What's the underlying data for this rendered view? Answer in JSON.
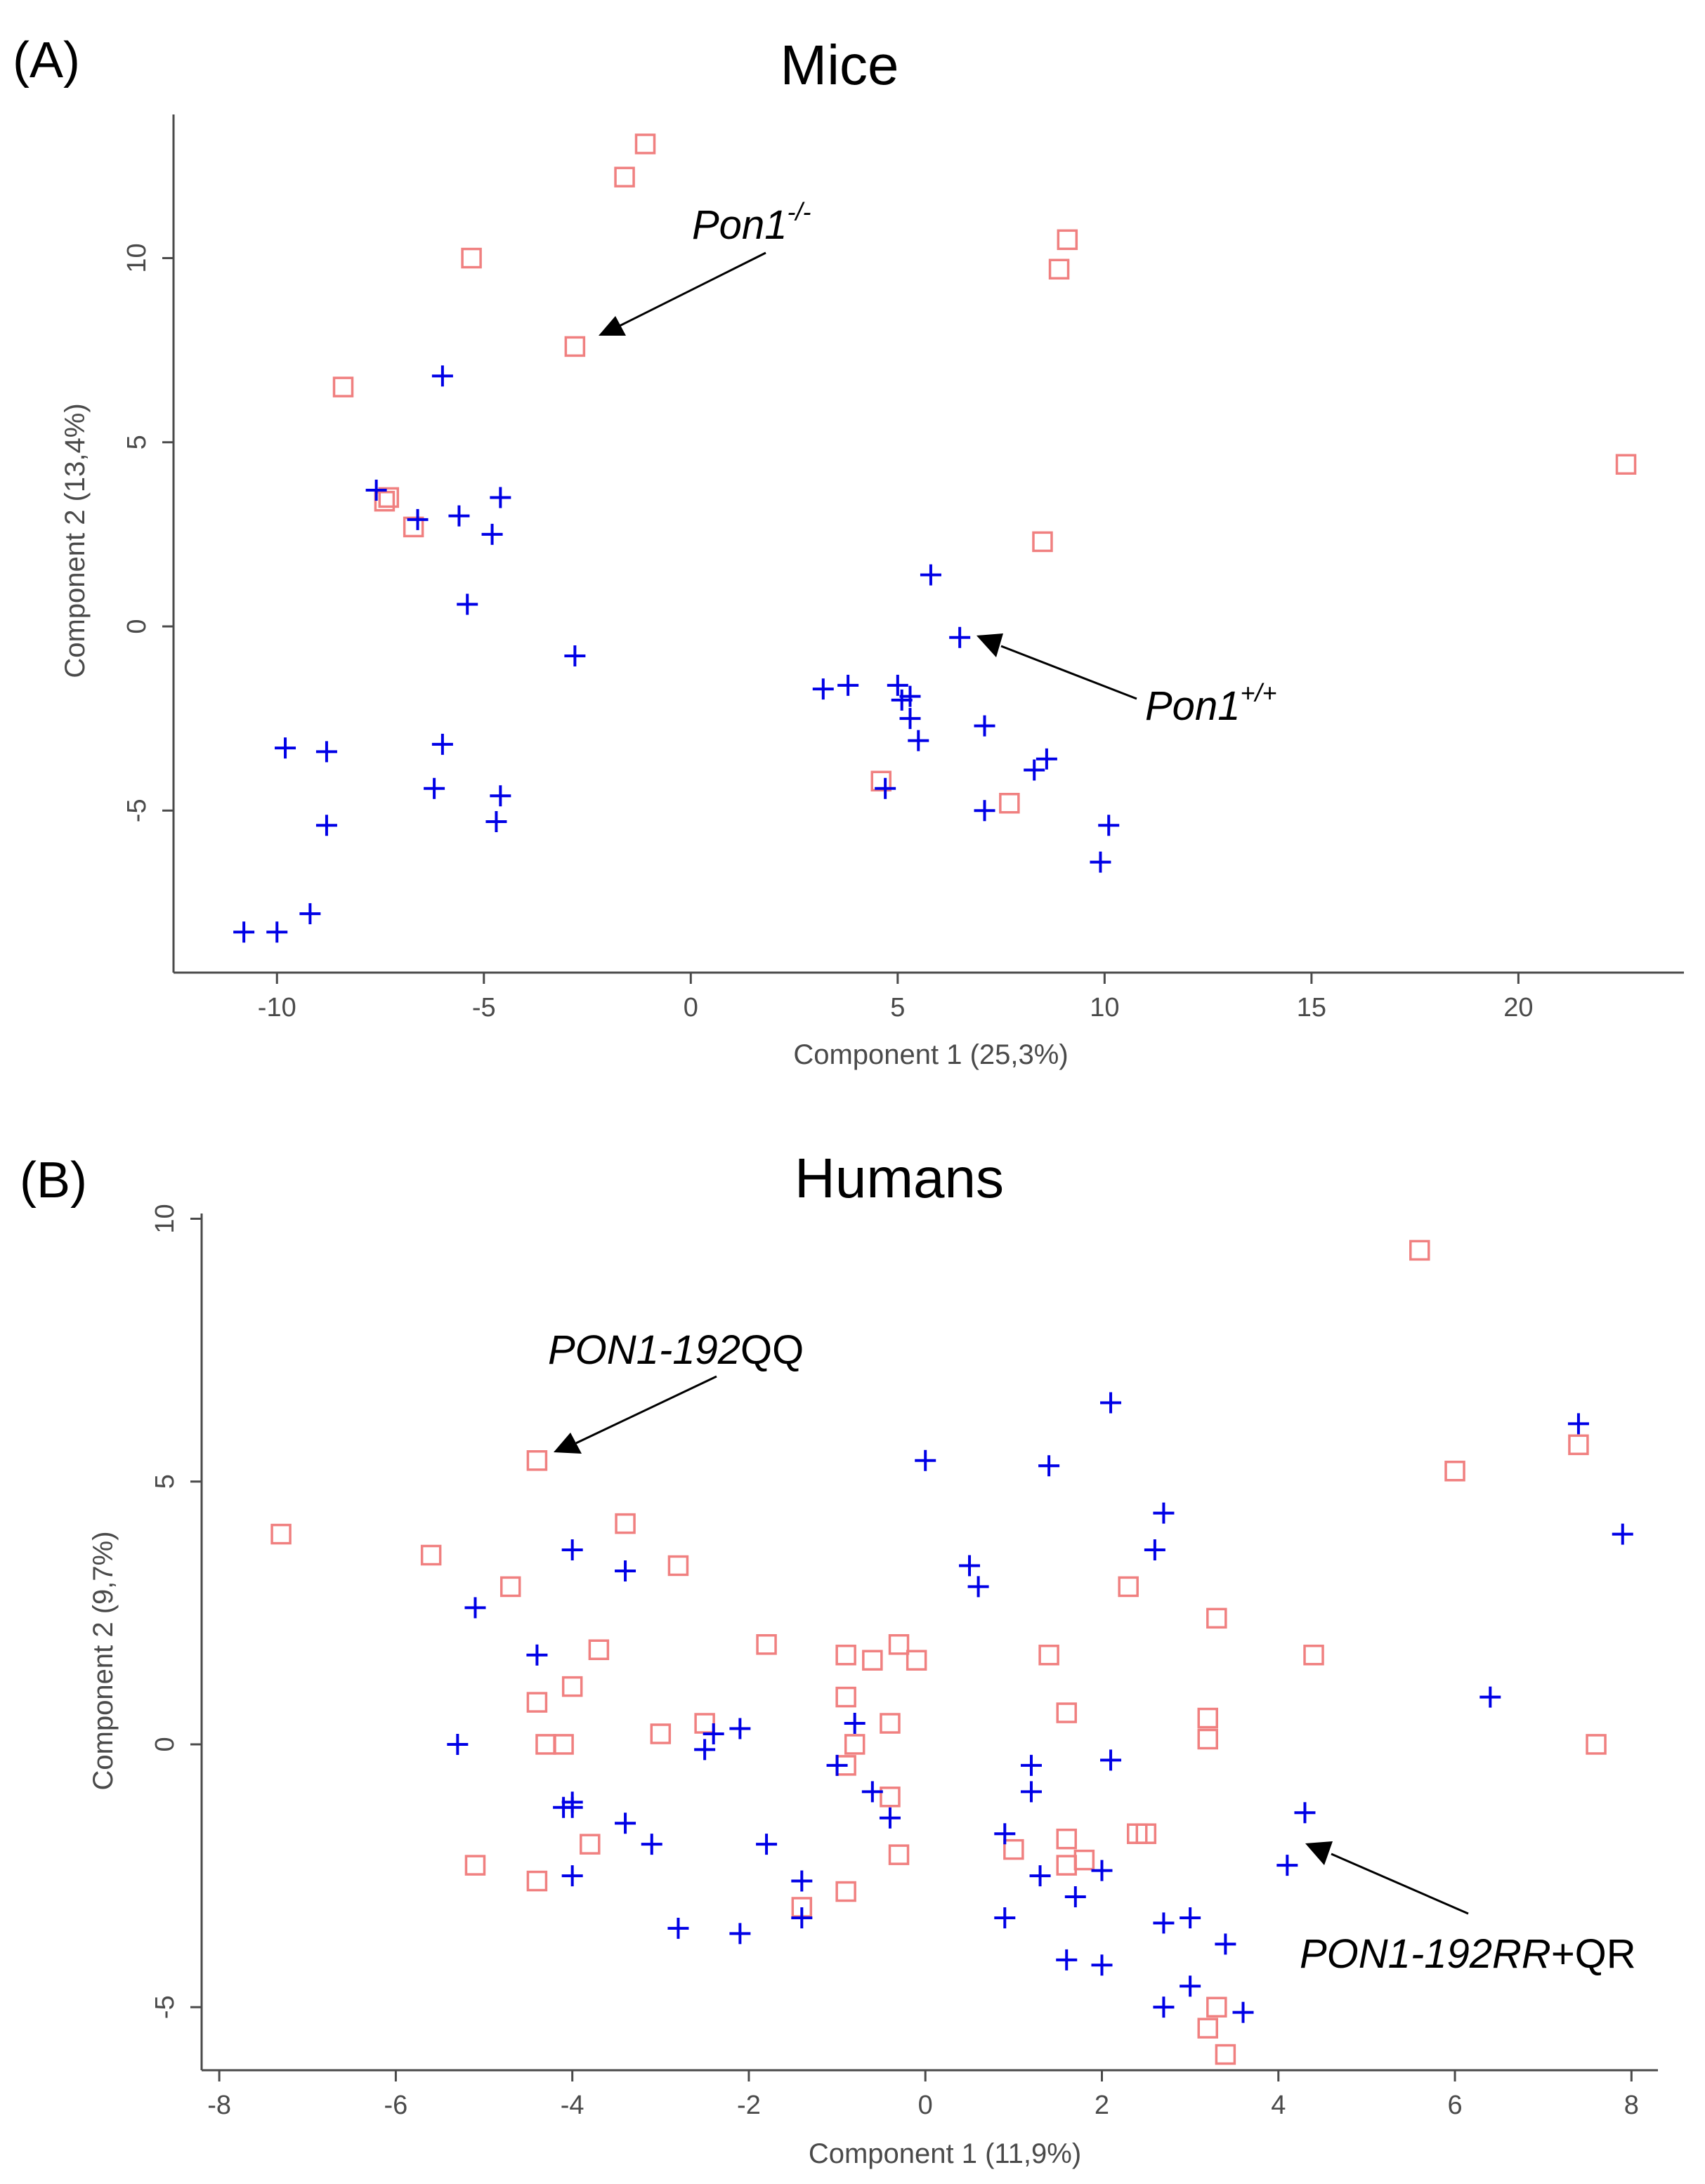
{
  "chart_data": [
    {
      "panel": "(A)",
      "type": "scatter",
      "title": "Mice",
      "xlabel": "Component 1 (25,3%)",
      "ylabel": "Component 2 (13,4%)",
      "xlim": [
        -12.5,
        24
      ],
      "ylim": [
        -9.4,
        13.9
      ],
      "xticks": [
        -10,
        -5,
        0,
        5,
        10,
        15,
        20
      ],
      "yticks": [
        -5,
        0,
        5,
        10
      ],
      "xtick_labels": [
        "-10",
        "-5",
        "0",
        "5",
        "10",
        "15",
        "20"
      ],
      "ytick_labels": [
        "-5",
        "0",
        "5",
        "10"
      ],
      "grid": false,
      "series": [
        {
          "name": "Pon1-/-",
          "marker": "square",
          "color": "#f08080",
          "points": [
            [
              -1.1,
              13.1
            ],
            [
              -1.6,
              12.2
            ],
            [
              -5.3,
              10.0
            ],
            [
              -2.8,
              7.6
            ],
            [
              -8.4,
              6.5
            ],
            [
              -7.4,
              3.4
            ],
            [
              -7.3,
              3.5
            ],
            [
              -6.7,
              2.7
            ],
            [
              8.9,
              9.7
            ],
            [
              9.1,
              10.5
            ],
            [
              22.6,
              4.4
            ],
            [
              8.5,
              2.3
            ],
            [
              4.6,
              -4.2
            ],
            [
              7.7,
              -4.8
            ]
          ]
        },
        {
          "name": "Pon1+/+",
          "marker": "plus",
          "color": "#0000e6",
          "points": [
            [
              -6.0,
              6.8
            ],
            [
              -7.6,
              3.7
            ],
            [
              -6.6,
              2.9
            ],
            [
              -5.6,
              3.0
            ],
            [
              -4.8,
              2.5
            ],
            [
              -4.6,
              3.5
            ],
            [
              -5.4,
              0.6
            ],
            [
              -2.8,
              -0.8
            ],
            [
              -9.8,
              -3.3
            ],
            [
              -8.8,
              -3.4
            ],
            [
              -8.8,
              -5.4
            ],
            [
              -6.0,
              -3.2
            ],
            [
              -6.2,
              -4.4
            ],
            [
              -4.6,
              -4.6
            ],
            [
              -4.7,
              -5.3
            ],
            [
              -9.2,
              -7.8
            ],
            [
              -10.0,
              -8.3
            ],
            [
              -10.8,
              -8.3
            ],
            [
              5.8,
              1.4
            ],
            [
              6.5,
              -0.3
            ],
            [
              3.2,
              -1.7
            ],
            [
              3.8,
              -1.6
            ],
            [
              5.0,
              -1.6
            ],
            [
              5.1,
              -2.0
            ],
            [
              5.3,
              -1.9
            ],
            [
              5.3,
              -2.5
            ],
            [
              5.5,
              -3.1
            ],
            [
              4.7,
              -4.4
            ],
            [
              7.1,
              -2.7
            ],
            [
              8.6,
              -3.6
            ],
            [
              8.3,
              -3.9
            ],
            [
              7.1,
              -5.0
            ],
            [
              10.1,
              -5.4
            ],
            [
              9.9,
              -6.4
            ]
          ]
        }
      ],
      "annotations": [
        {
          "gene": "Pon1",
          "superscript": "-/-"
        },
        {
          "gene": "Pon1",
          "superscript": "+/+"
        }
      ]
    },
    {
      "panel": "(B)",
      "type": "scatter",
      "title": "Humans",
      "xlabel": "Component 1 (11,9%)",
      "ylabel": "Component 2 (9,7%)",
      "xlim": [
        -8.2,
        8.3
      ],
      "ylim": [
        -6.2,
        10.1
      ],
      "xticks": [
        -8,
        -6,
        -4,
        -2,
        0,
        2,
        4,
        6,
        8
      ],
      "yticks": [
        -5,
        0,
        5,
        10
      ],
      "xtick_labels": [
        "-8",
        "-6",
        "-4",
        "-2",
        "0",
        "2",
        "4",
        "6",
        "8"
      ],
      "ytick_labels": [
        "-5",
        "0",
        "5",
        "10"
      ],
      "grid": false,
      "series": [
        {
          "name": "PON1-192QQ",
          "marker": "square",
          "color": "#f08080",
          "points": [
            [
              5.6,
              9.4
            ],
            [
              -7.3,
              4.0
            ],
            [
              -4.4,
              5.4
            ],
            [
              -5.6,
              3.6
            ],
            [
              -4.7,
              3.0
            ],
            [
              -3.4,
              4.2
            ],
            [
              -2.8,
              3.4
            ],
            [
              -3.7,
              1.8
            ],
            [
              -4.0,
              1.1
            ],
            [
              -4.4,
              0.8
            ],
            [
              -4.3,
              0.0
            ],
            [
              -4.1,
              0.0
            ],
            [
              -3.0,
              0.2
            ],
            [
              -2.5,
              0.4
            ],
            [
              -1.8,
              1.9
            ],
            [
              -0.9,
              1.7
            ],
            [
              -0.9,
              0.9
            ],
            [
              -0.6,
              1.6
            ],
            [
              -0.3,
              1.9
            ],
            [
              -0.1,
              1.6
            ],
            [
              -0.4,
              0.4
            ],
            [
              -0.8,
              0.0
            ],
            [
              -0.9,
              -0.4
            ],
            [
              -0.4,
              -1.0
            ],
            [
              -0.3,
              -2.1
            ],
            [
              -0.9,
              -2.8
            ],
            [
              -1.4,
              -3.1
            ],
            [
              -3.8,
              -1.9
            ],
            [
              -4.4,
              -2.6
            ],
            [
              -5.1,
              -2.3
            ],
            [
              1.4,
              1.7
            ],
            [
              1.6,
              0.6
            ],
            [
              1.0,
              -2.0
            ],
            [
              1.6,
              -1.8
            ],
            [
              1.6,
              -2.3
            ],
            [
              1.8,
              -2.2
            ],
            [
              2.4,
              -1.7
            ],
            [
              2.5,
              -1.7
            ],
            [
              2.3,
              3.0
            ],
            [
              3.3,
              2.4
            ],
            [
              3.2,
              0.5
            ],
            [
              3.2,
              0.1
            ],
            [
              4.4,
              1.7
            ],
            [
              6.0,
              5.2
            ],
            [
              7.4,
              5.7
            ],
            [
              7.6,
              0.0
            ],
            [
              3.3,
              -5.0
            ],
            [
              3.2,
              -5.4
            ],
            [
              3.4,
              -5.9
            ]
          ]
        },
        {
          "name": "PON1-192RR+QR",
          "marker": "plus",
          "color": "#0000e6",
          "points": [
            [
              2.1,
              6.5
            ],
            [
              0.0,
              5.4
            ],
            [
              1.4,
              5.3
            ],
            [
              2.7,
              4.4
            ],
            [
              2.6,
              3.7
            ],
            [
              0.5,
              3.4
            ],
            [
              0.6,
              3.0
            ],
            [
              -4.0,
              3.7
            ],
            [
              -3.4,
              3.3
            ],
            [
              -5.1,
              2.6
            ],
            [
              -4.4,
              1.7
            ],
            [
              -5.3,
              0.0
            ],
            [
              -4.1,
              -1.2
            ],
            [
              -4.0,
              -1.2
            ],
            [
              -4.0,
              -1.1
            ],
            [
              -3.4,
              -1.5
            ],
            [
              -3.1,
              -1.9
            ],
            [
              -4.0,
              -2.5
            ],
            [
              -2.1,
              0.3
            ],
            [
              -2.4,
              0.2
            ],
            [
              -2.5,
              -0.1
            ],
            [
              -0.8,
              0.4
            ],
            [
              -1.0,
              -0.4
            ],
            [
              -0.6,
              -0.9
            ],
            [
              -0.4,
              -1.4
            ],
            [
              -1.8,
              -1.9
            ],
            [
              -1.4,
              -2.6
            ],
            [
              -1.4,
              -3.3
            ],
            [
              -2.1,
              -3.6
            ],
            [
              -2.8,
              -3.5
            ],
            [
              1.2,
              -0.4
            ],
            [
              1.2,
              -0.9
            ],
            [
              2.1,
              -0.3
            ],
            [
              0.9,
              -1.7
            ],
            [
              1.3,
              -2.5
            ],
            [
              1.7,
              -2.9
            ],
            [
              2.0,
              -2.4
            ],
            [
              0.9,
              -3.3
            ],
            [
              1.6,
              -4.1
            ],
            [
              2.0,
              -4.2
            ],
            [
              2.7,
              -3.4
            ],
            [
              3.0,
              -3.3
            ],
            [
              3.4,
              -3.8
            ],
            [
              2.7,
              -5.0
            ],
            [
              3.0,
              -4.6
            ],
            [
              3.6,
              -5.1
            ],
            [
              4.3,
              -1.3
            ],
            [
              4.1,
              -2.3
            ],
            [
              6.4,
              0.9
            ],
            [
              7.4,
              6.1
            ],
            [
              7.9,
              4.0
            ]
          ]
        }
      ],
      "annotations": [
        {
          "italic": "PON1-192",
          "plain": "QQ"
        },
        {
          "italic": "PON1-192RR",
          "plain": "+QR"
        }
      ]
    }
  ]
}
